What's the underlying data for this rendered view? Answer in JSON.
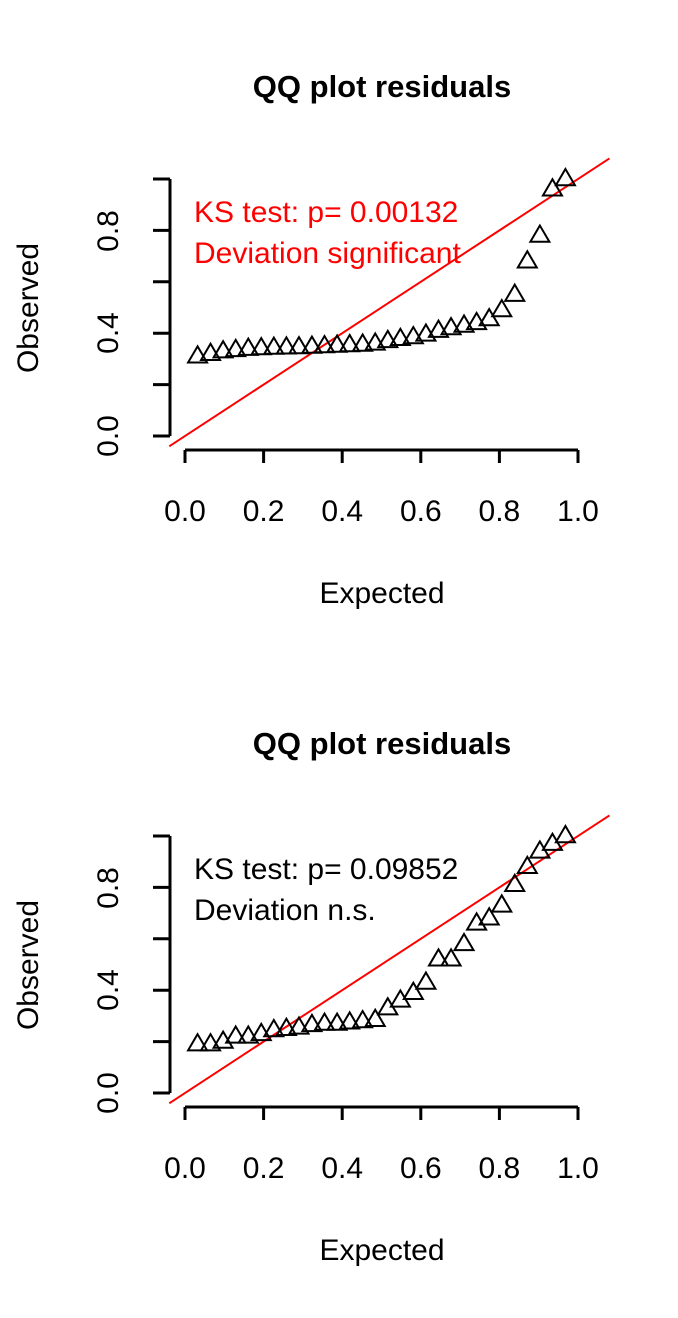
{
  "chart_data": [
    {
      "type": "scatter",
      "title": "QQ plot residuals",
      "xlabel": "Expected",
      "ylabel": "Observed",
      "xlim": [
        0,
        1
      ],
      "ylim": [
        0,
        1
      ],
      "xticks": [
        "0.0",
        "0.2",
        "0.4",
        "0.6",
        "0.8",
        "1.0"
      ],
      "yticks": [
        "0.0",
        "0.4",
        "0.8"
      ],
      "annotation_lines": [
        "KS test: p= 0.00132",
        "Deviation  significant"
      ],
      "annotation_color": "#ff0000",
      "reference_line": {
        "intercept": 0,
        "slope": 1,
        "color": "#ff0000"
      },
      "marker": "triangle",
      "x": [
        0.032,
        0.065,
        0.097,
        0.129,
        0.161,
        0.194,
        0.226,
        0.258,
        0.29,
        0.323,
        0.355,
        0.387,
        0.419,
        0.452,
        0.484,
        0.516,
        0.548,
        0.581,
        0.613,
        0.645,
        0.677,
        0.71,
        0.742,
        0.774,
        0.806,
        0.839,
        0.871,
        0.903,
        0.935,
        0.968
      ],
      "y": [
        0.31,
        0.32,
        0.33,
        0.335,
        0.34,
        0.342,
        0.344,
        0.345,
        0.346,
        0.348,
        0.35,
        0.352,
        0.354,
        0.356,
        0.36,
        0.37,
        0.378,
        0.385,
        0.395,
        0.41,
        0.42,
        0.43,
        0.44,
        0.455,
        0.49,
        0.55,
        0.68,
        0.78,
        0.96,
        1.0
      ]
    },
    {
      "type": "scatter",
      "title": "QQ plot residuals",
      "xlabel": "Expected",
      "ylabel": "Observed",
      "xlim": [
        0,
        1
      ],
      "ylim": [
        0,
        1
      ],
      "xticks": [
        "0.0",
        "0.2",
        "0.4",
        "0.6",
        "0.8",
        "1.0"
      ],
      "yticks": [
        "0.0",
        "0.4",
        "0.8"
      ],
      "annotation_lines": [
        "KS test: p= 0.09852",
        "Deviation  n.s."
      ],
      "annotation_color": "#000000",
      "reference_line": {
        "intercept": 0,
        "slope": 1,
        "color": "#ff0000"
      },
      "marker": "triangle",
      "x": [
        0.032,
        0.065,
        0.097,
        0.129,
        0.161,
        0.194,
        0.226,
        0.258,
        0.29,
        0.323,
        0.355,
        0.387,
        0.419,
        0.452,
        0.484,
        0.516,
        0.548,
        0.581,
        0.613,
        0.645,
        0.677,
        0.71,
        0.742,
        0.774,
        0.806,
        0.839,
        0.871,
        0.903,
        0.935,
        0.968
      ],
      "y": [
        0.19,
        0.19,
        0.2,
        0.22,
        0.22,
        0.23,
        0.245,
        0.25,
        0.255,
        0.265,
        0.27,
        0.27,
        0.275,
        0.28,
        0.285,
        0.33,
        0.36,
        0.39,
        0.43,
        0.52,
        0.52,
        0.58,
        0.66,
        0.68,
        0.73,
        0.81,
        0.88,
        0.94,
        0.97,
        1.0
      ]
    }
  ]
}
